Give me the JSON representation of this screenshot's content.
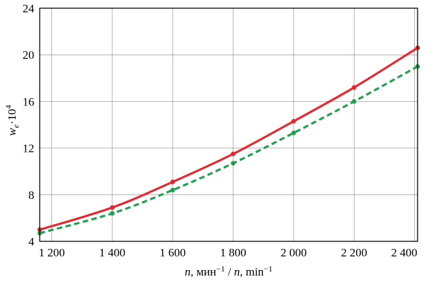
{
  "chart_data": {
    "type": "line",
    "title": "",
    "xlabel": "n, мин⁻¹ / n, min⁻¹",
    "xlabel_parts": {
      "var1": "n",
      "unit1": ", мин",
      "sep": " / ",
      "var2": "n",
      "unit2": ", min",
      "exp": "−1"
    },
    "ylabel": "we·10⁴",
    "ylabel_parts": {
      "var": "w",
      "sub": "e",
      "rest": "·10",
      "sup": "4"
    },
    "xlim": [
      1160,
      2410
    ],
    "ylim": [
      4,
      24
    ],
    "grid": true,
    "legend": "none",
    "x_ticks": [
      {
        "value": 1200,
        "label": "1 200"
      },
      {
        "value": 1400,
        "label": "1 400"
      },
      {
        "value": 1600,
        "label": "1 600"
      },
      {
        "value": 1800,
        "label": "1 800"
      },
      {
        "value": 2000,
        "label": "2 000"
      },
      {
        "value": 2200,
        "label": "2 200"
      },
      {
        "value": 2400,
        "label": "2 400"
      }
    ],
    "y_ticks": [
      {
        "value": 4,
        "label": "4"
      },
      {
        "value": 8,
        "label": "8"
      },
      {
        "value": 12,
        "label": "12"
      },
      {
        "value": 16,
        "label": "16"
      },
      {
        "value": 20,
        "label": "20"
      },
      {
        "value": 24,
        "label": "24"
      }
    ],
    "series": [
      {
        "style": "solid",
        "color": "#e8262d",
        "x": [
          1160,
          1400,
          1600,
          1800,
          2000,
          2200,
          2410
        ],
        "y": [
          5.0,
          6.9,
          9.1,
          11.5,
          14.3,
          17.2,
          20.6
        ]
      },
      {
        "style": "dashed",
        "color": "#1fa04f",
        "x": [
          1160,
          1400,
          1600,
          1800,
          2000,
          2200,
          2410
        ],
        "y": [
          4.7,
          6.4,
          8.4,
          10.7,
          13.3,
          16.0,
          19.0
        ]
      }
    ]
  }
}
